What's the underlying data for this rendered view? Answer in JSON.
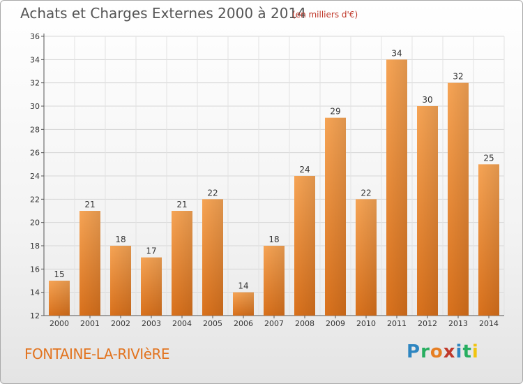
{
  "header": {
    "title": "Achats et Charges Externes 2000 à 2014",
    "unit": "(en milliers d'€)"
  },
  "footer": {
    "commune": "FONTAINE-LA-RIVIèRE",
    "logo_letters": [
      {
        "ch": "P",
        "color": "#2e86c1"
      },
      {
        "ch": "r",
        "color": "#27ae60"
      },
      {
        "ch": "o",
        "color": "#e67e22"
      },
      {
        "ch": "x",
        "color": "#c0392b"
      },
      {
        "ch": "i",
        "color": "#2e86c1"
      },
      {
        "ch": "t",
        "color": "#27ae60"
      },
      {
        "ch": "i",
        "color": "#f1c40f"
      }
    ]
  },
  "chart_data": {
    "type": "bar",
    "title": "Achats et Charges Externes 2000 à 2014",
    "subtitle": "(en milliers d'€)",
    "xlabel": "",
    "ylabel": "",
    "categories": [
      "2000",
      "2001",
      "2002",
      "2003",
      "2004",
      "2005",
      "2006",
      "2007",
      "2008",
      "2009",
      "2010",
      "2011",
      "2012",
      "2013",
      "2014"
    ],
    "values": [
      15,
      21,
      18,
      17,
      21,
      22,
      14,
      18,
      24,
      29,
      22,
      34,
      30,
      32,
      25
    ],
    "ylim": [
      12,
      36
    ],
    "yticks": [
      12,
      14,
      16,
      18,
      20,
      22,
      24,
      26,
      28,
      30,
      32,
      34,
      36
    ],
    "grid": true,
    "legend": "none",
    "bar_color": "#f0923a"
  }
}
